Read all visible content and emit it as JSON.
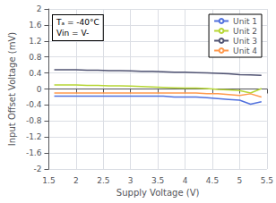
{
  "chart_data": {
    "type": "line",
    "annotation": "Tₐ = -40°C\nVin = V-",
    "xlabel": "Supply Voltage (V)",
    "ylabel": "Input Offset Voltage (mV)",
    "xlim": [
      1.5,
      5.5
    ],
    "ylim": [
      -2.0,
      2.0
    ],
    "xticks": [
      1.5,
      2.0,
      2.5,
      3.0,
      3.5,
      4.0,
      4.5,
      5.0,
      5.5
    ],
    "yticks": [
      -2.0,
      -1.6,
      -1.2,
      -0.8,
      -0.4,
      0.0,
      0.4,
      0.8,
      1.2,
      1.6,
      2.0
    ],
    "grid": true,
    "legend": "upper right",
    "x": [
      1.6,
      1.8,
      2.0,
      2.2,
      2.4,
      2.6,
      2.8,
      3.0,
      3.2,
      3.4,
      3.6,
      3.8,
      4.0,
      4.2,
      4.4,
      4.6,
      4.8,
      5.0,
      5.2,
      5.4
    ],
    "series": [
      {
        "name": "Unit 1",
        "values": [
          -0.18,
          -0.18,
          -0.18,
          -0.18,
          -0.18,
          -0.18,
          -0.18,
          -0.18,
          -0.18,
          -0.18,
          -0.18,
          -0.2,
          -0.2,
          -0.2,
          -0.22,
          -0.24,
          -0.26,
          -0.28,
          -0.38,
          -0.32
        ]
      },
      {
        "name": "Unit 2",
        "values": [
          0.1,
          0.1,
          0.1,
          0.09,
          0.09,
          0.08,
          0.08,
          0.07,
          0.06,
          0.05,
          0.04,
          0.03,
          0.02,
          0.02,
          0.01,
          -0.01,
          -0.02,
          -0.04,
          -0.1,
          0.01
        ]
      },
      {
        "name": "Unit 3",
        "values": [
          0.48,
          0.48,
          0.48,
          0.47,
          0.47,
          0.46,
          0.46,
          0.45,
          0.44,
          0.44,
          0.43,
          0.42,
          0.42,
          0.41,
          0.4,
          0.39,
          0.38,
          0.36,
          0.35,
          0.34
        ]
      },
      {
        "name": "Unit 4",
        "values": [
          -0.1,
          -0.1,
          -0.1,
          -0.1,
          -0.1,
          -0.1,
          -0.1,
          -0.1,
          -0.1,
          -0.1,
          -0.1,
          -0.1,
          -0.1,
          -0.1,
          -0.12,
          -0.12,
          -0.14,
          -0.16,
          -0.12,
          -0.2
        ]
      }
    ]
  }
}
